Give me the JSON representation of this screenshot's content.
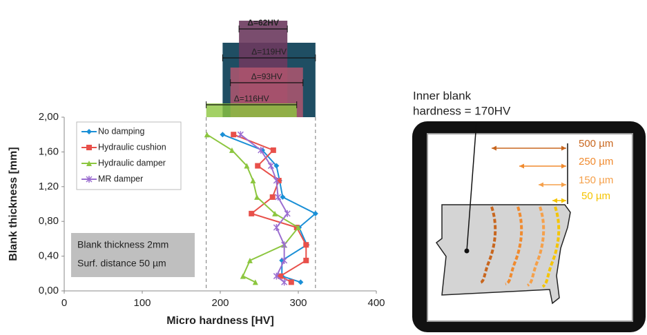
{
  "chart_data": {
    "type": "line",
    "orientation": "horizontal",
    "xlabel": "Micro hardness [HV]",
    "ylabel": "Blank thickness [mm]",
    "xlim": [
      0,
      400
    ],
    "xticks": [
      0,
      100,
      200,
      300,
      400
    ],
    "ylim": [
      0,
      2
    ],
    "yticks": [
      {
        "value": 0,
        "label": "0,00"
      },
      {
        "value": 0.4,
        "label": "0,40"
      },
      {
        "value": 0.8,
        "label": "0,80"
      },
      {
        "value": 1.2,
        "label": "1,20"
      },
      {
        "value": 1.6,
        "label": "1,60"
      },
      {
        "value": 2,
        "label": "2,00"
      }
    ],
    "grid": false,
    "legend": "upper left",
    "y": [
      1.8,
      1.62,
      1.44,
      1.27,
      1.08,
      0.89,
      0.73,
      0.53,
      0.35,
      0.17,
      0.1
    ],
    "series": [
      {
        "name": "No damping",
        "color": "#1a8fd6",
        "marker": "diamond",
        "values": [
          203,
          254,
          272,
          276,
          280,
          322,
          301,
          311,
          279,
          279,
          303
        ]
      },
      {
        "name": "Hydraulic cushion",
        "color": "#e8504a",
        "marker": "square",
        "values": [
          217,
          268,
          248,
          275,
          267,
          240,
          298,
          310,
          310,
          277,
          291
        ]
      },
      {
        "name": "Hydraulic damper",
        "color": "#8cc63f",
        "marker": "triangle",
        "values": [
          183,
          215,
          234,
          242,
          247,
          270,
          300,
          282,
          238,
          229,
          245
        ]
      },
      {
        "name": "MR damper",
        "color": "#9b6ed0",
        "marker": "star",
        "values": [
          226,
          252,
          265,
          272,
          274,
          286,
          272,
          282,
          282,
          272,
          282
        ]
      }
    ],
    "annotations": [
      {
        "label": "Δ=62HV",
        "range": [
          224,
          286
        ],
        "color": "#6b3a5e"
      },
      {
        "label": "Δ=119HV",
        "range": [
          203,
          322
        ],
        "color": "#1f4e63"
      },
      {
        "label": "Δ=93HV",
        "range": [
          213,
          306
        ],
        "color": "#b0566f"
      },
      {
        "label": "Δ=116HV",
        "range": [
          182,
          298
        ],
        "color": "#8cc63f"
      }
    ],
    "note": [
      "Blank thickness 2mm",
      "Surf. distance 50 µm"
    ]
  },
  "diagram": {
    "title": [
      "Inner blank",
      "hardness = 170HV"
    ],
    "depths": [
      {
        "label": "500 µm",
        "color": "#c8661e"
      },
      {
        "label": "250 µm",
        "color": "#f08a2e"
      },
      {
        "label": "150 µm",
        "color": "#f5a04a"
      },
      {
        "label": "50 µm",
        "color": "#f5c400"
      }
    ]
  }
}
